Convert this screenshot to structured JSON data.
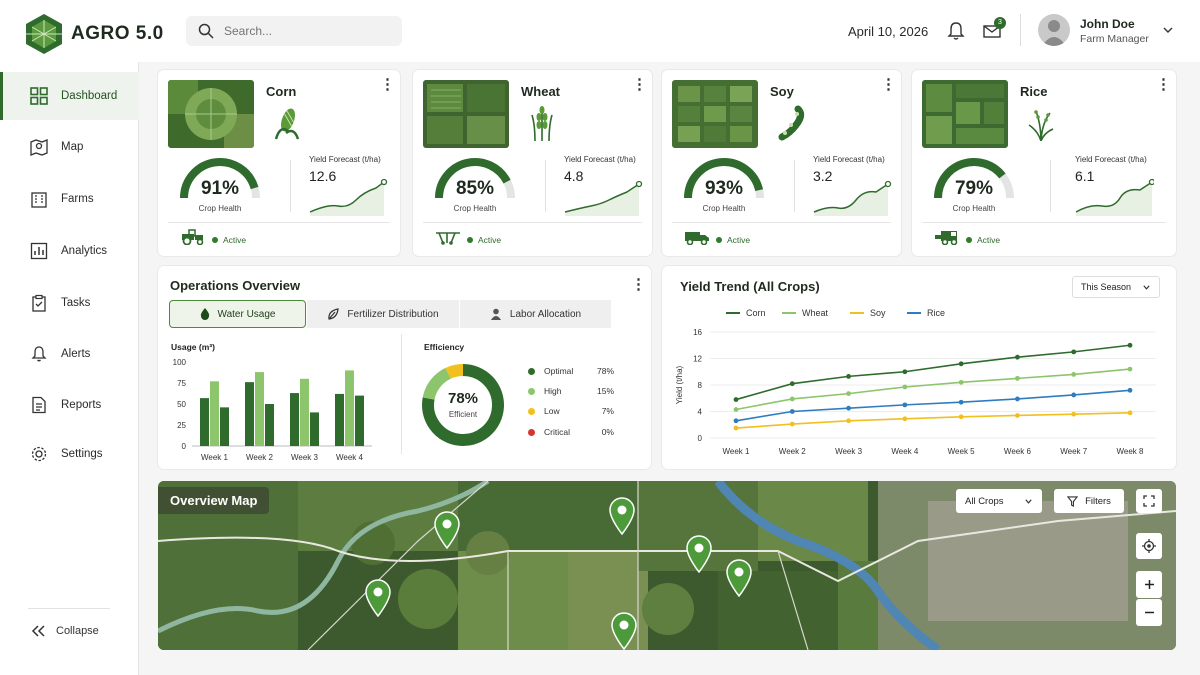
{
  "app": {
    "name": "AGRO 5.0"
  },
  "header": {
    "search_placeholder": "Search...",
    "date": "April 10, 2026",
    "mail_badge": "3",
    "user_name": "John Doe",
    "user_role": "Farm Manager"
  },
  "sidebar": {
    "items": [
      {
        "label": "Dashboard",
        "icon": "grid-icon"
      },
      {
        "label": "Map",
        "icon": "map-icon"
      },
      {
        "label": "Farms",
        "icon": "building-icon"
      },
      {
        "label": "Analytics",
        "icon": "chart-icon"
      },
      {
        "label": "Tasks",
        "icon": "clipboard-icon"
      },
      {
        "label": "Alerts",
        "icon": "bell-icon"
      },
      {
        "label": "Reports",
        "icon": "document-icon"
      },
      {
        "label": "Settings",
        "icon": "gear-icon"
      }
    ],
    "collapse_label": "Collapse"
  },
  "crops": [
    {
      "name": "Corn",
      "health": "91%",
      "health_pct": 91,
      "health_label": "Crop Health",
      "forecast_label": "Yield Forecast (t/ha)",
      "forecast": "12.6",
      "status": "Active",
      "vehicle": "tractor-icon"
    },
    {
      "name": "Wheat",
      "health": "85%",
      "health_pct": 85,
      "health_label": "Crop Health",
      "forecast_label": "Yield Forecast (t/ha)",
      "forecast": "4.8",
      "status": "Active",
      "vehicle": "irrigator-icon"
    },
    {
      "name": "Soy",
      "health": "93%",
      "health_pct": 93,
      "health_label": "Crop Health",
      "forecast_label": "Yield Forecast (t/ha)",
      "forecast": "3.2",
      "status": "Active",
      "vehicle": "truck-icon"
    },
    {
      "name": "Rice",
      "health": "79%",
      "health_pct": 79,
      "health_label": "Crop Health",
      "forecast_label": "Yield Forecast (t/ha)",
      "forecast": "6.1",
      "status": "Active",
      "vehicle": "harvester-icon"
    }
  ],
  "operations": {
    "title": "Operations Overview",
    "tabs": [
      "Water Usage",
      "Fertilizer Distribution",
      "Labor Allocation"
    ],
    "usage_label": "Usage (m³)",
    "efficiency_label": "Efficiency",
    "efficiency_value": "78%",
    "efficiency_sub": "Efficient",
    "efficiency_legend": [
      {
        "label": "Optimal",
        "value": "78%",
        "color": "#2f6b2c"
      },
      {
        "label": "High",
        "value": "15%",
        "color": "#8cc56b"
      },
      {
        "label": "Low",
        "value": "7%",
        "color": "#f2c01e"
      },
      {
        "label": "Critical",
        "value": "0%",
        "color": "#d9342b"
      }
    ]
  },
  "yield_trend": {
    "title": "Yield Trend (All Crops)",
    "period": "This Season",
    "ylabel": "Yield (t/ha)"
  },
  "map": {
    "title": "Overview Map",
    "filter_select": "All Crops",
    "filters_label": "Filters"
  },
  "chart_data": [
    {
      "type": "bar",
      "title": "Usage (m³)",
      "categories": [
        "Week 1",
        "Week 2",
        "Week 3",
        "Week 4"
      ],
      "yticks": [
        0,
        25,
        50,
        75,
        100
      ],
      "ylim": [
        0,
        100
      ],
      "series": [
        {
          "values": [
            57,
            76,
            63,
            62
          ],
          "color": "#2f6b2c"
        },
        {
          "values": [
            77,
            88,
            80,
            90
          ],
          "color": "#8cc56b"
        },
        {
          "values": [
            46,
            50,
            40,
            60
          ],
          "color": "#2f6b2c"
        }
      ]
    },
    {
      "type": "pie",
      "title": "Efficiency",
      "slices": [
        {
          "label": "Optimal",
          "value": 78
        },
        {
          "label": "High",
          "value": 15
        },
        {
          "label": "Low",
          "value": 7
        },
        {
          "label": "Critical",
          "value": 0
        }
      ]
    },
    {
      "type": "line",
      "title": "Yield Trend (All Crops)",
      "ylabel": "Yield (t/ha)",
      "categories": [
        "Week 1",
        "Week 2",
        "Week 3",
        "Week 4",
        "Week 5",
        "Week 6",
        "Week 7",
        "Week 8"
      ],
      "ylim": [
        0,
        16
      ],
      "yticks": [
        0,
        4,
        8,
        12,
        16
      ],
      "series": [
        {
          "name": "Corn",
          "color": "#2f6b2c",
          "values": [
            5.8,
            8.2,
            9.3,
            10.0,
            11.2,
            12.2,
            13.0,
            14.0
          ]
        },
        {
          "name": "Wheat",
          "color": "#8cc56b",
          "values": [
            4.3,
            5.9,
            6.7,
            7.7,
            8.4,
            9.0,
            9.6,
            10.4
          ]
        },
        {
          "name": "Soy",
          "color": "#f2c01e",
          "values": [
            1.5,
            2.1,
            2.6,
            2.9,
            3.2,
            3.4,
            3.6,
            3.8
          ]
        },
        {
          "name": "Rice",
          "color": "#2f7dbf",
          "values": [
            2.6,
            4.0,
            4.5,
            5.0,
            5.4,
            5.9,
            6.5,
            7.2
          ]
        }
      ]
    }
  ]
}
